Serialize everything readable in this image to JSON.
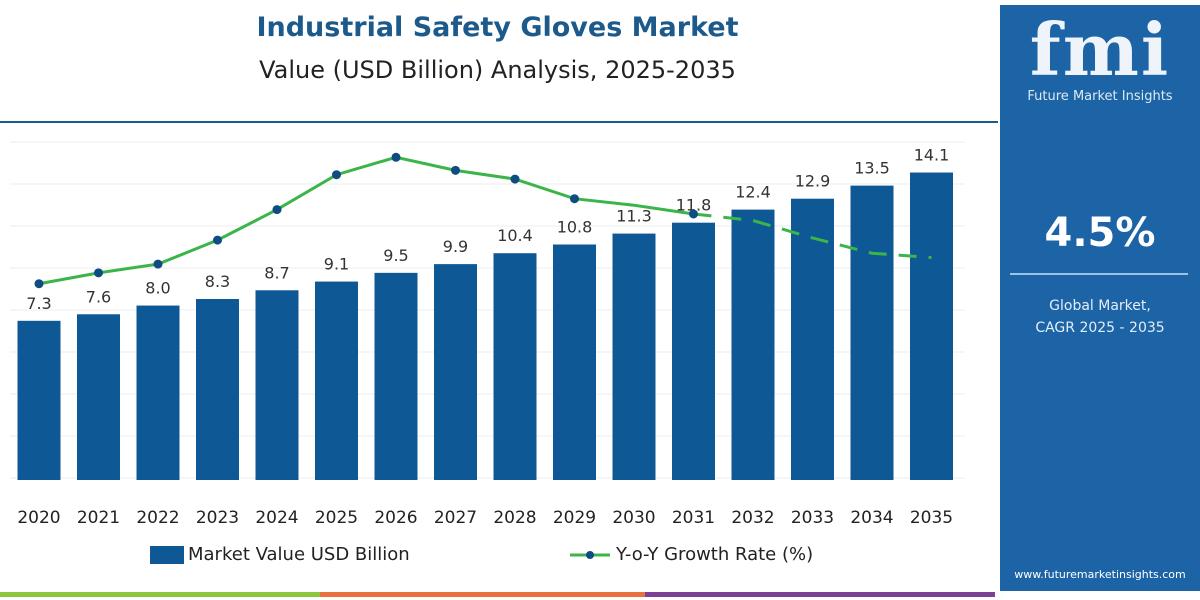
{
  "header": {
    "title": "Industrial Safety Gloves Market",
    "subtitle": "Value (USD Billion) Analysis, 2025-2035"
  },
  "chart_data": {
    "type": "bar",
    "title": "Industrial Safety Gloves Market",
    "subtitle": "Value (USD Billion) Analysis, 2025-2035",
    "categories": [
      "2020",
      "2021",
      "2022",
      "2023",
      "2024",
      "2025",
      "2026",
      "2027",
      "2028",
      "2029",
      "2030",
      "2031",
      "2032",
      "2033",
      "2034",
      "2035"
    ],
    "series": [
      {
        "name": "Market Value USD Billion",
        "type": "bar",
        "color": "#0f5896",
        "values": [
          7.3,
          7.6,
          8.0,
          8.3,
          8.7,
          9.1,
          9.5,
          9.9,
          10.4,
          10.8,
          11.3,
          11.8,
          12.4,
          12.9,
          13.5,
          14.1
        ],
        "labels": [
          "7.3",
          "7.6",
          "8.0",
          "8.3",
          "8.7",
          "9.1",
          "9.5",
          "9.9",
          "10.4",
          "10.8",
          "11.3",
          "11.8",
          "12.4",
          "12.9",
          "13.5",
          "14.1"
        ]
      },
      {
        "name": "Y-o-Y Growth Rate (%)",
        "type": "line",
        "color": "#3bb54a",
        "note_scale": "unlabeled axis; relative shape",
        "values": [
          9.0,
          9.5,
          9.9,
          11.0,
          12.4,
          14.0,
          14.8,
          14.2,
          13.8,
          12.9,
          12.6,
          12.2,
          11.9,
          11.1,
          10.4,
          10.2
        ],
        "dashed_from": "2031"
      }
    ],
    "ylim": [
      0,
      15.5
    ],
    "grid": true,
    "legend": "bottom"
  },
  "legend": {
    "bar": "Market Value USD Billion",
    "line": "Y-o-Y Growth Rate (%)"
  },
  "panel": {
    "logo": "fmi",
    "brand": "Future Market Insights",
    "cagr": "4.5%",
    "cagr_label_1": "Global Market,",
    "cagr_label_2": "CAGR 2025 - 2035",
    "url": "www.futuremarketinsights.com",
    "color": "#1c64a6"
  }
}
